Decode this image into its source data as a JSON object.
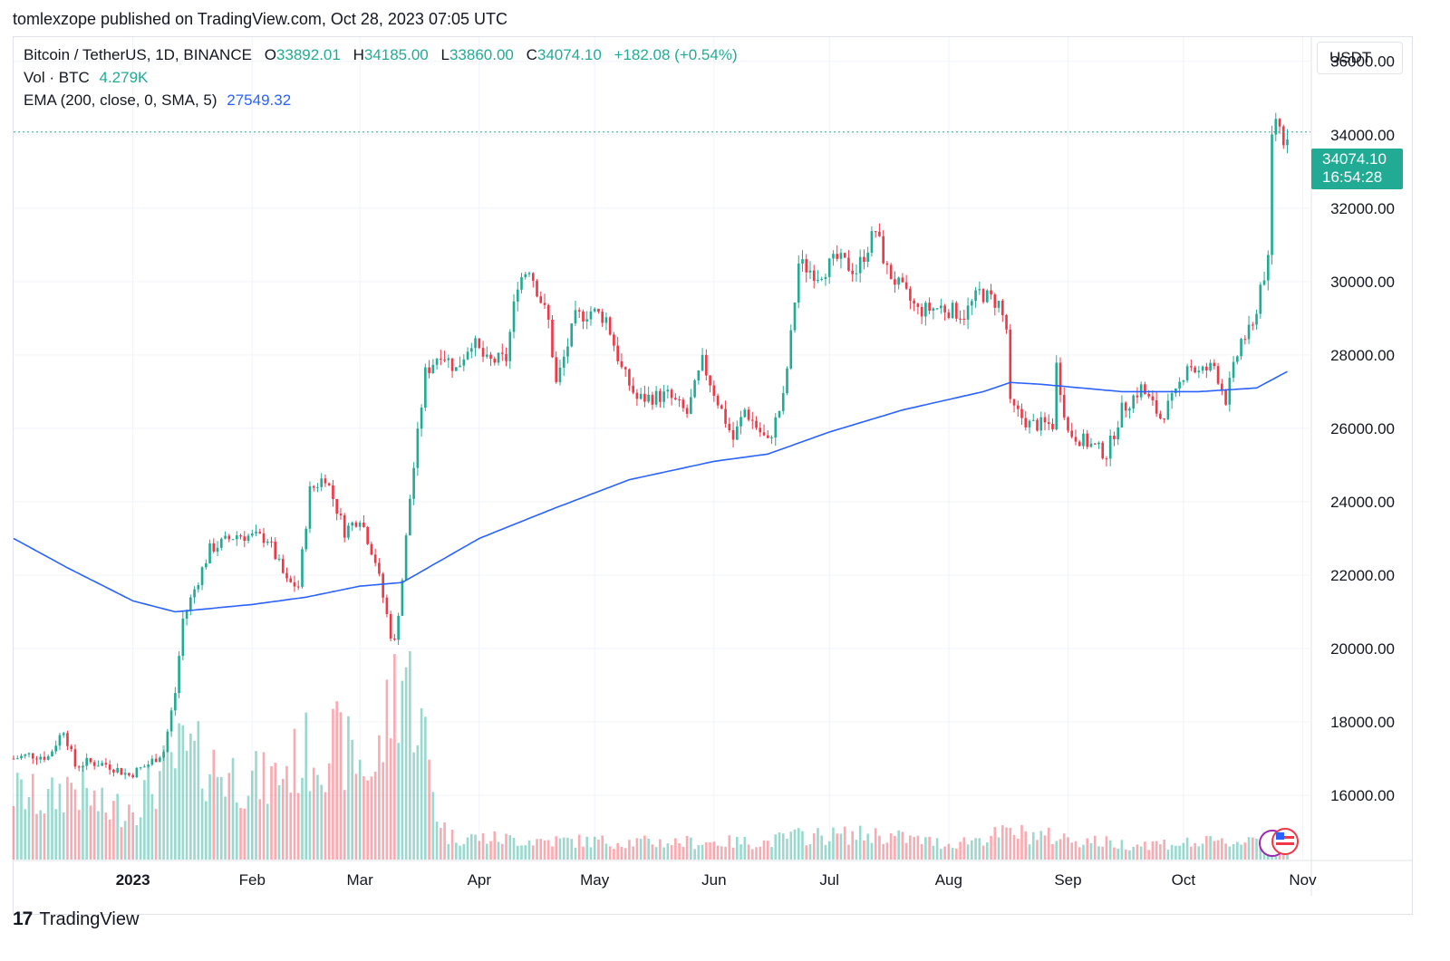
{
  "header": {
    "publisher": "tomlexzope published on TradingView.com, Oct 28, 2023 07:05 UTC"
  },
  "legend": {
    "symbol": "Bitcoin / TetherUS, 1D, BINANCE",
    "o_label": "O",
    "o_value": "33892.01",
    "h_label": "H",
    "h_value": "34185.00",
    "l_label": "L",
    "l_value": "33860.00",
    "c_label": "C",
    "c_value": "34074.10",
    "change": "+182.08 (+0.54%)",
    "vol_label": "Vol · BTC",
    "vol_value": "4.279K",
    "ema_label": "EMA (200, close, 0, SMA, 5)",
    "ema_value": "27549.32"
  },
  "price_axis": {
    "unit": "USDT"
  },
  "last_price": {
    "value": "34074.10",
    "countdown": "16:54:28"
  },
  "footer": {
    "brand": "TradingView"
  },
  "colors": {
    "up": "#22ab94",
    "down": "#f23645",
    "ema": "#2962ff",
    "grid": "#f0f3fa"
  },
  "chart_data": {
    "type": "candlestick",
    "interval": "1D",
    "y_ticks": [
      "36000.00",
      "34000.00",
      "32000.00",
      "30000.00",
      "28000.00",
      "26000.00",
      "24000.00",
      "22000.00",
      "20000.00",
      "18000.00",
      "16000.00"
    ],
    "ylim": [
      14250,
      36660
    ],
    "x_ticks": [
      "2023",
      "Feb",
      "Mar",
      "Apr",
      "May",
      "Jun",
      "Jul",
      "Aug",
      "Sep",
      "Oct",
      "Nov"
    ],
    "x_tick_dates": [
      "2023-01-01",
      "2023-02-01",
      "2023-03-01",
      "2023-04-01",
      "2023-05-01",
      "2023-06-01",
      "2023-07-01",
      "2023-08-01",
      "2023-09-01",
      "2023-10-01",
      "2023-11-01"
    ],
    "x_range": [
      "2022-12-01",
      "2023-11-03"
    ],
    "last_price": 34074.1,
    "close_anchors": [
      [
        "2022-12-01",
        17000
      ],
      [
        "2022-12-05",
        17100
      ],
      [
        "2022-12-10",
        17050
      ],
      [
        "2022-12-14",
        17800
      ],
      [
        "2022-12-17",
        16800
      ],
      [
        "2022-12-20",
        16900
      ],
      [
        "2022-12-25",
        16850
      ],
      [
        "2022-12-31",
        16550
      ],
      [
        "2023-01-05",
        16850
      ],
      [
        "2023-01-09",
        17200
      ],
      [
        "2023-01-12",
        18800
      ],
      [
        "2023-01-14",
        20800
      ],
      [
        "2023-01-21",
        22700
      ],
      [
        "2023-01-28",
        23100
      ],
      [
        "2023-02-05",
        23000
      ],
      [
        "2023-02-10",
        21800
      ],
      [
        "2023-02-13",
        21700
      ],
      [
        "2023-02-16",
        24300
      ],
      [
        "2023-02-20",
        24700
      ],
      [
        "2023-02-25",
        23200
      ],
      [
        "2023-03-01",
        23600
      ],
      [
        "2023-03-05",
        22400
      ],
      [
        "2023-03-09",
        20400
      ],
      [
        "2023-03-10",
        20150
      ],
      [
        "2023-03-12",
        21900
      ],
      [
        "2023-03-14",
        24100
      ],
      [
        "2023-03-18",
        27500
      ],
      [
        "2023-03-22",
        28100
      ],
      [
        "2023-03-26",
        27600
      ],
      [
        "2023-03-30",
        28400
      ],
      [
        "2023-04-03",
        27800
      ],
      [
        "2023-04-08",
        27900
      ],
      [
        "2023-04-11",
        30000
      ],
      [
        "2023-04-14",
        30400
      ],
      [
        "2023-04-19",
        28900
      ],
      [
        "2023-04-21",
        27200
      ],
      [
        "2023-04-26",
        29000
      ],
      [
        "2023-04-30",
        29200
      ],
      [
        "2023-05-04",
        29000
      ],
      [
        "2023-05-08",
        27600
      ],
      [
        "2023-05-12",
        26800
      ],
      [
        "2023-05-20",
        26900
      ],
      [
        "2023-05-25",
        26400
      ],
      [
        "2023-05-29",
        27800
      ],
      [
        "2023-06-01",
        27000
      ],
      [
        "2023-06-06",
        25700
      ],
      [
        "2023-06-09",
        26500
      ],
      [
        "2023-06-15",
        25600
      ],
      [
        "2023-06-19",
        26800
      ],
      [
        "2023-06-21",
        28500
      ],
      [
        "2023-06-23",
        30500
      ],
      [
        "2023-06-28",
        30200
      ],
      [
        "2023-07-03",
        30600
      ],
      [
        "2023-07-08",
        30300
      ],
      [
        "2023-07-13",
        31400
      ],
      [
        "2023-07-16",
        30300
      ],
      [
        "2023-07-24",
        29200
      ],
      [
        "2023-07-30",
        29300
      ],
      [
        "2023-08-05",
        29100
      ],
      [
        "2023-08-09",
        29700
      ],
      [
        "2023-08-14",
        29400
      ],
      [
        "2023-08-16",
        28700
      ],
      [
        "2023-08-17",
        26600
      ],
      [
        "2023-08-22",
        26100
      ],
      [
        "2023-08-28",
        26100
      ],
      [
        "2023-08-29",
        27700
      ],
      [
        "2023-09-01",
        25900
      ],
      [
        "2023-09-11",
        25300
      ],
      [
        "2023-09-15",
        26500
      ],
      [
        "2023-09-20",
        27100
      ],
      [
        "2023-09-25",
        26300
      ],
      [
        "2023-09-29",
        26900
      ],
      [
        "2023-10-02",
        27800
      ],
      [
        "2023-10-05",
        27500
      ],
      [
        "2023-10-09",
        27700
      ],
      [
        "2023-10-12",
        26800
      ],
      [
        "2023-10-16",
        28400
      ],
      [
        "2023-10-19",
        28700
      ],
      [
        "2023-10-21",
        29900
      ],
      [
        "2023-10-23",
        30500
      ],
      [
        "2023-10-24",
        33900
      ],
      [
        "2023-10-25",
        34500
      ],
      [
        "2023-10-27",
        33900
      ],
      [
        "2023-10-28",
        34074
      ]
    ],
    "volume_anchors": [
      [
        "2022-12-01",
        0.35
      ],
      [
        "2022-12-10",
        0.3
      ],
      [
        "2022-12-16",
        0.4
      ],
      [
        "2022-12-25",
        0.25
      ],
      [
        "2023-01-02",
        0.3
      ],
      [
        "2023-01-14",
        0.55
      ],
      [
        "2023-01-25",
        0.45
      ],
      [
        "2023-02-05",
        0.4
      ],
      [
        "2023-02-15",
        0.55
      ],
      [
        "2023-02-22",
        0.6
      ],
      [
        "2023-03-05",
        0.45
      ],
      [
        "2023-03-10",
        0.9
      ],
      [
        "2023-03-13",
        1.0
      ],
      [
        "2023-03-18",
        0.6
      ],
      [
        "2023-03-21",
        0.25
      ],
      [
        "2023-03-24",
        0.12
      ],
      [
        "2023-04-15",
        0.1
      ],
      [
        "2023-05-15",
        0.09
      ],
      [
        "2023-06-15",
        0.09
      ],
      [
        "2023-06-21",
        0.12
      ],
      [
        "2023-07-13",
        0.13
      ],
      [
        "2023-08-01",
        0.08
      ],
      [
        "2023-08-17",
        0.14
      ],
      [
        "2023-09-15",
        0.08
      ],
      [
        "2023-10-15",
        0.09
      ],
      [
        "2023-10-23",
        0.14
      ],
      [
        "2023-10-28",
        0.05
      ]
    ],
    "ema_anchors": [
      [
        "2022-12-01",
        23000
      ],
      [
        "2022-12-15",
        22200
      ],
      [
        "2023-01-01",
        21300
      ],
      [
        "2023-01-12",
        21000
      ],
      [
        "2023-02-01",
        21200
      ],
      [
        "2023-02-15",
        21400
      ],
      [
        "2023-03-01",
        21700
      ],
      [
        "2023-03-12",
        21800
      ],
      [
        "2023-04-01",
        23000
      ],
      [
        "2023-04-20",
        23800
      ],
      [
        "2023-05-10",
        24600
      ],
      [
        "2023-06-01",
        25100
      ],
      [
        "2023-06-15",
        25300
      ],
      [
        "2023-07-01",
        25900
      ],
      [
        "2023-07-20",
        26500
      ],
      [
        "2023-08-10",
        27000
      ],
      [
        "2023-08-17",
        27250
      ],
      [
        "2023-08-25",
        27200
      ],
      [
        "2023-09-15",
        27000
      ],
      [
        "2023-10-05",
        27000
      ],
      [
        "2023-10-20",
        27100
      ],
      [
        "2023-10-28",
        27549
      ]
    ]
  }
}
